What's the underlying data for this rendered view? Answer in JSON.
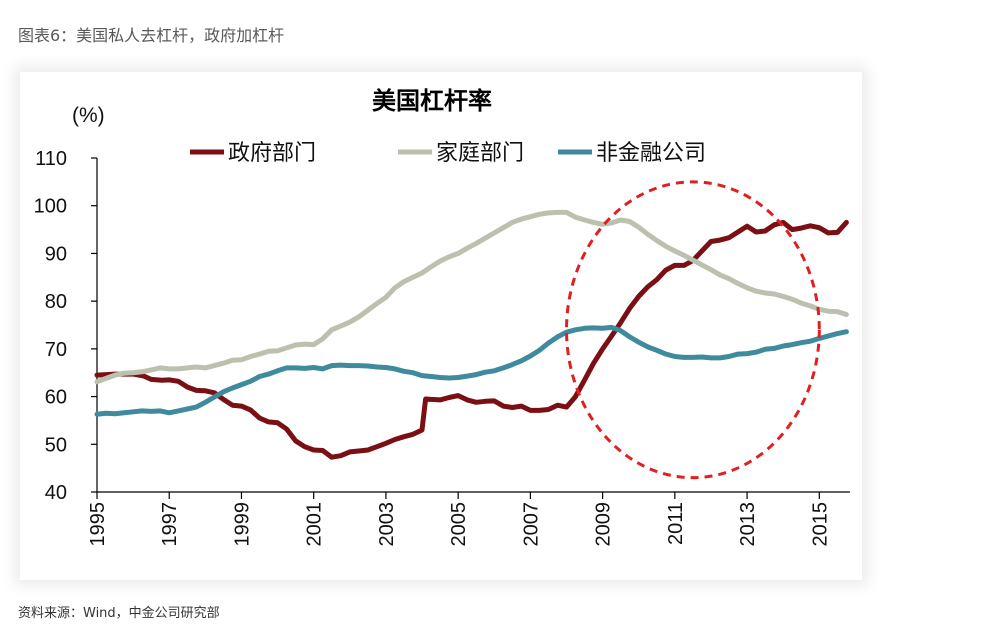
{
  "caption": "图表6：美国私人去杠杆，政府加杠杆",
  "source": "资料来源：Wind，中金公司研究部",
  "chart_data": {
    "type": "line",
    "title": "美国杠杆率",
    "ylabel": "(%)",
    "xlabel": "",
    "ylim": [
      40,
      110
    ],
    "yticks": [
      "40",
      "50",
      "60",
      "70",
      "80",
      "90",
      "100",
      "110"
    ],
    "xlim": [
      1995,
      2015.85
    ],
    "xticks": [
      "1995",
      "1997",
      "1999",
      "2001",
      "2003",
      "2005",
      "2007",
      "2009",
      "2011",
      "2013",
      "2015"
    ],
    "grid": false,
    "legend": "top",
    "annotation": {
      "type": "dashed-ellipse",
      "color": "#e02020",
      "center": [
        2011.5,
        74
      ],
      "radius_x": 3.5,
      "radius_y": 31
    },
    "series": [
      {
        "name": "政府部门",
        "color": "#7a1014",
        "points": [
          [
            1995,
            64.5
          ],
          [
            1995.5,
            64.7
          ],
          [
            1996,
            64.7
          ],
          [
            1996.3,
            64.3
          ],
          [
            1996.5,
            63.6
          ],
          [
            1996.8,
            63.4
          ],
          [
            1997,
            63.5
          ],
          [
            1997.25,
            63.2
          ],
          [
            1997.5,
            62
          ],
          [
            1997.75,
            61.3
          ],
          [
            1998,
            61.2
          ],
          [
            1998.25,
            60.8
          ],
          [
            1998.5,
            59.4
          ],
          [
            1998.75,
            58.2
          ],
          [
            1999,
            58
          ],
          [
            1999.25,
            57.2
          ],
          [
            1999.5,
            55.5
          ],
          [
            1999.75,
            54.7
          ],
          [
            2000,
            54.5
          ],
          [
            2000.25,
            53.2
          ],
          [
            2000.5,
            50.7
          ],
          [
            2000.75,
            49.5
          ],
          [
            2001,
            48.8
          ],
          [
            2001.25,
            48.7
          ],
          [
            2001.5,
            47.3
          ],
          [
            2001.75,
            47.6
          ],
          [
            2002,
            48.4
          ],
          [
            2002.25,
            48.6
          ],
          [
            2002.5,
            48.8
          ],
          [
            2002.75,
            49.5
          ],
          [
            2003,
            50.2
          ],
          [
            2003.25,
            51
          ],
          [
            2003.5,
            51.6
          ],
          [
            2003.75,
            52.1
          ],
          [
            2004,
            53
          ],
          [
            2004.1,
            59.5
          ],
          [
            2004.25,
            59.4
          ],
          [
            2004.5,
            59.3
          ],
          [
            2004.75,
            59.8
          ],
          [
            2005,
            60.2
          ],
          [
            2005.25,
            59.3
          ],
          [
            2005.5,
            58.8
          ],
          [
            2005.75,
            59
          ],
          [
            2006,
            59.1
          ],
          [
            2006.25,
            58
          ],
          [
            2006.5,
            57.7
          ],
          [
            2006.75,
            58
          ],
          [
            2007,
            57.1
          ],
          [
            2007.25,
            57.1
          ],
          [
            2007.5,
            57.3
          ],
          [
            2007.75,
            58.2
          ],
          [
            2008,
            57.8
          ],
          [
            2008.25,
            60
          ],
          [
            2008.5,
            63.5
          ],
          [
            2008.75,
            67
          ],
          [
            2009,
            70
          ],
          [
            2009.25,
            72.7
          ],
          [
            2009.5,
            75.5
          ],
          [
            2009.75,
            78.5
          ],
          [
            2010,
            81
          ],
          [
            2010.25,
            83
          ],
          [
            2010.5,
            84.5
          ],
          [
            2010.75,
            86.5
          ],
          [
            2011,
            87.5
          ],
          [
            2011.25,
            87.5
          ],
          [
            2011.5,
            88.5
          ],
          [
            2011.75,
            90.5
          ],
          [
            2012,
            92.5
          ],
          [
            2012.25,
            92.8
          ],
          [
            2012.5,
            93.3
          ],
          [
            2012.75,
            94.5
          ],
          [
            2013,
            95.7
          ],
          [
            2013.25,
            94.5
          ],
          [
            2013.5,
            94.7
          ],
          [
            2013.75,
            96
          ],
          [
            2014,
            96.5
          ],
          [
            2014.25,
            95
          ],
          [
            2014.5,
            95.3
          ],
          [
            2014.75,
            95.8
          ],
          [
            2015,
            95.4
          ],
          [
            2015.25,
            94.3
          ],
          [
            2015.5,
            94.4
          ],
          [
            2015.75,
            96.5
          ]
        ]
      },
      {
        "name": "家庭部门",
        "color": "#bcc0ae",
        "points": [
          [
            1995,
            63.1
          ],
          [
            1995.25,
            63.8
          ],
          [
            1995.5,
            64.5
          ],
          [
            1995.75,
            64.9
          ],
          [
            1996,
            65
          ],
          [
            1996.25,
            65.2
          ],
          [
            1996.5,
            65.6
          ],
          [
            1996.75,
            66
          ],
          [
            1997,
            65.8
          ],
          [
            1997.25,
            65.8
          ],
          [
            1997.5,
            66
          ],
          [
            1997.75,
            66.2
          ],
          [
            1998,
            66
          ],
          [
            1998.25,
            66.5
          ],
          [
            1998.5,
            67
          ],
          [
            1998.75,
            67.6
          ],
          [
            1999,
            67.7
          ],
          [
            1999.25,
            68.4
          ],
          [
            1999.5,
            68.9
          ],
          [
            1999.75,
            69.5
          ],
          [
            2000,
            69.6
          ],
          [
            2000.25,
            70.2
          ],
          [
            2000.5,
            70.8
          ],
          [
            2000.75,
            71
          ],
          [
            2001,
            70.9
          ],
          [
            2001.25,
            72.1
          ],
          [
            2001.5,
            74
          ],
          [
            2001.75,
            74.8
          ],
          [
            2002,
            75.6
          ],
          [
            2002.25,
            76.7
          ],
          [
            2002.5,
            78.1
          ],
          [
            2002.75,
            79.5
          ],
          [
            2003,
            80.8
          ],
          [
            2003.25,
            82.8
          ],
          [
            2003.5,
            84.1
          ],
          [
            2003.75,
            85
          ],
          [
            2004,
            85.9
          ],
          [
            2004.25,
            87.2
          ],
          [
            2004.5,
            88.4
          ],
          [
            2004.75,
            89.3
          ],
          [
            2005,
            90
          ],
          [
            2005.25,
            91.1
          ],
          [
            2005.5,
            92.1
          ],
          [
            2005.75,
            93.2
          ],
          [
            2006,
            94.3
          ],
          [
            2006.25,
            95.4
          ],
          [
            2006.5,
            96.5
          ],
          [
            2006.75,
            97.2
          ],
          [
            2007,
            97.7
          ],
          [
            2007.25,
            98.2
          ],
          [
            2007.5,
            98.5
          ],
          [
            2007.75,
            98.6
          ],
          [
            2008,
            98.6
          ],
          [
            2008.25,
            97.6
          ],
          [
            2008.5,
            97
          ],
          [
            2008.75,
            96.5
          ],
          [
            2009,
            96.1
          ],
          [
            2009.25,
            96.4
          ],
          [
            2009.5,
            97
          ],
          [
            2009.75,
            96.7
          ],
          [
            2010,
            95.5
          ],
          [
            2010.25,
            94
          ],
          [
            2010.5,
            92.7
          ],
          [
            2010.75,
            91.5
          ],
          [
            2011,
            90.5
          ],
          [
            2011.25,
            89.6
          ],
          [
            2011.5,
            88.6
          ],
          [
            2011.75,
            87.6
          ],
          [
            2012,
            86.6
          ],
          [
            2012.25,
            85.5
          ],
          [
            2012.5,
            84.7
          ],
          [
            2012.75,
            83.7
          ],
          [
            2013,
            82.8
          ],
          [
            2013.25,
            82.1
          ],
          [
            2013.5,
            81.7
          ],
          [
            2013.75,
            81.5
          ],
          [
            2014,
            81
          ],
          [
            2014.25,
            80.4
          ],
          [
            2014.5,
            79.6
          ],
          [
            2014.75,
            79
          ],
          [
            2015,
            78.3
          ],
          [
            2015.25,
            77.9
          ],
          [
            2015.5,
            77.8
          ],
          [
            2015.75,
            77.2
          ]
        ]
      },
      {
        "name": "非金融公司",
        "color": "#3f8a9c",
        "points": [
          [
            1995,
            56.3
          ],
          [
            1995.25,
            56.5
          ],
          [
            1995.5,
            56.4
          ],
          [
            1995.75,
            56.6
          ],
          [
            1996,
            56.8
          ],
          [
            1996.25,
            57
          ],
          [
            1996.5,
            56.9
          ],
          [
            1996.75,
            57
          ],
          [
            1997,
            56.6
          ],
          [
            1997.25,
            57
          ],
          [
            1997.5,
            57.4
          ],
          [
            1997.75,
            57.8
          ],
          [
            1998,
            58.8
          ],
          [
            1998.25,
            59.9
          ],
          [
            1998.5,
            61
          ],
          [
            1998.75,
            61.8
          ],
          [
            1999,
            62.5
          ],
          [
            1999.25,
            63.2
          ],
          [
            1999.5,
            64.2
          ],
          [
            1999.75,
            64.7
          ],
          [
            2000,
            65.4
          ],
          [
            2000.25,
            66
          ],
          [
            2000.5,
            66
          ],
          [
            2000.75,
            65.9
          ],
          [
            2001,
            66.1
          ],
          [
            2001.25,
            65.8
          ],
          [
            2001.5,
            66.5
          ],
          [
            2001.75,
            66.6
          ],
          [
            2002,
            66.5
          ],
          [
            2002.25,
            66.5
          ],
          [
            2002.5,
            66.4
          ],
          [
            2002.75,
            66.2
          ],
          [
            2003,
            66.1
          ],
          [
            2003.25,
            65.8
          ],
          [
            2003.5,
            65.3
          ],
          [
            2003.75,
            65
          ],
          [
            2004,
            64.4
          ],
          [
            2004.25,
            64.2
          ],
          [
            2004.5,
            64
          ],
          [
            2004.75,
            63.9
          ],
          [
            2005,
            64
          ],
          [
            2005.25,
            64.3
          ],
          [
            2005.5,
            64.6
          ],
          [
            2005.75,
            65.1
          ],
          [
            2006,
            65.4
          ],
          [
            2006.25,
            66
          ],
          [
            2006.5,
            66.7
          ],
          [
            2006.75,
            67.5
          ],
          [
            2007,
            68.5
          ],
          [
            2007.25,
            69.7
          ],
          [
            2007.5,
            71.2
          ],
          [
            2007.75,
            72.5
          ],
          [
            2008,
            73.5
          ],
          [
            2008.25,
            74
          ],
          [
            2008.5,
            74.3
          ],
          [
            2008.75,
            74.4
          ],
          [
            2009,
            74.3
          ],
          [
            2009.25,
            74.5
          ],
          [
            2009.5,
            73.8
          ],
          [
            2009.75,
            72.5
          ],
          [
            2010,
            71.4
          ],
          [
            2010.25,
            70.4
          ],
          [
            2010.5,
            69.7
          ],
          [
            2010.75,
            68.9
          ],
          [
            2011,
            68.4
          ],
          [
            2011.25,
            68.2
          ],
          [
            2011.5,
            68.2
          ],
          [
            2011.75,
            68.3
          ],
          [
            2012,
            68.1
          ],
          [
            2012.25,
            68.1
          ],
          [
            2012.5,
            68.4
          ],
          [
            2012.75,
            68.9
          ],
          [
            2013,
            69
          ],
          [
            2013.25,
            69.3
          ],
          [
            2013.5,
            69.9
          ],
          [
            2013.75,
            70.1
          ],
          [
            2014,
            70.6
          ],
          [
            2014.25,
            70.9
          ],
          [
            2014.5,
            71.3
          ],
          [
            2014.75,
            71.6
          ],
          [
            2015,
            72.2
          ],
          [
            2015.25,
            72.7
          ],
          [
            2015.5,
            73.2
          ],
          [
            2015.75,
            73.6
          ]
        ]
      }
    ]
  }
}
